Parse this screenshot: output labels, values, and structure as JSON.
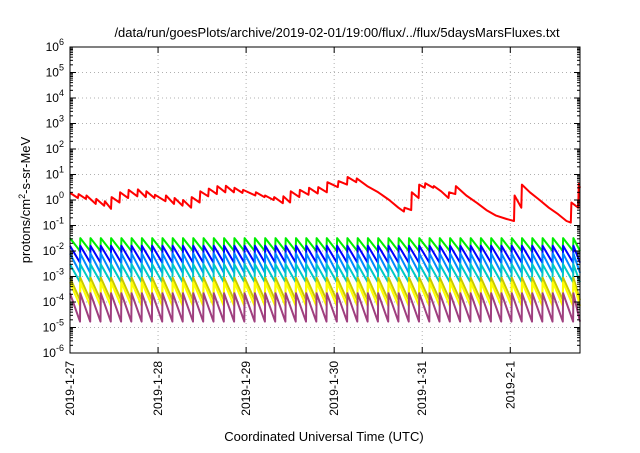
{
  "chart_data": {
    "type": "line",
    "title": "/data/run/goesPlots/archive/2019-02-01/19:00/flux/../flux/5daysMarsFluxes.txt",
    "xlabel": "Coordinated Universal Time (UTC)",
    "ylabel": "protons/cm2-s-sr-MeV",
    "ylabel_parts": {
      "main": "protons/cm",
      "sup": "2",
      "rest": "-s-sr-MeV"
    },
    "yscale": "log",
    "ylim": [
      1e-06,
      1000000.0
    ],
    "y_ticks": [
      {
        "mant": "10",
        "exp": "-6"
      },
      {
        "mant": "10",
        "exp": "-5"
      },
      {
        "mant": "10",
        "exp": "-4"
      },
      {
        "mant": "10",
        "exp": "-3"
      },
      {
        "mant": "10",
        "exp": "-2"
      },
      {
        "mant": "10",
        "exp": "-1"
      },
      {
        "mant": "10",
        "exp": "0"
      },
      {
        "mant": "10",
        "exp": "1"
      },
      {
        "mant": "10",
        "exp": "2"
      },
      {
        "mant": "10",
        "exp": "3"
      },
      {
        "mant": "10",
        "exp": "4"
      },
      {
        "mant": "10",
        "exp": "5"
      },
      {
        "mant": "10",
        "exp": "6"
      }
    ],
    "xlim": [
      "2019-01-27",
      "2019-02-01T19:00"
    ],
    "x_ticks": [
      "2019-1-27",
      "2019-1-28",
      "2019-1-29",
      "2019-1-30",
      "2019-1-31",
      "2019-2-1"
    ],
    "grid": true,
    "legend": "none",
    "series": [
      {
        "color": "#ff0000",
        "kind": "points",
        "points": [
          [
            "2019-01-27T00:00",
            1.9
          ],
          [
            "2019-01-27T02:10",
            1.2
          ],
          [
            "2019-01-27T02:20",
            1.7
          ],
          [
            "2019-01-27T04:20",
            1.1
          ],
          [
            "2019-01-27T04:30",
            1.5
          ],
          [
            "2019-01-27T07:00",
            0.7
          ],
          [
            "2019-01-27T07:10",
            1.1
          ],
          [
            "2019-01-27T09:20",
            0.6
          ],
          [
            "2019-01-27T09:30",
            0.9
          ],
          [
            "2019-01-27T11:10",
            0.45
          ],
          [
            "2019-01-27T11:20",
            1.3
          ],
          [
            "2019-01-27T13:30",
            0.8
          ],
          [
            "2019-01-27T13:40",
            2.0
          ],
          [
            "2019-01-27T15:50",
            1.2
          ],
          [
            "2019-01-27T16:00",
            2.5
          ],
          [
            "2019-01-27T18:20",
            1.4
          ],
          [
            "2019-01-27T18:30",
            2.6
          ],
          [
            "2019-01-27T20:40",
            1.3
          ],
          [
            "2019-01-27T20:50",
            2.2
          ],
          [
            "2019-01-27T23:00",
            1.2
          ],
          [
            "2019-01-27T23:10",
            1.6
          ],
          [
            "2019-01-28T02:00",
            0.9
          ],
          [
            "2019-01-28T02:10",
            1.5
          ],
          [
            "2019-01-28T04:20",
            0.7
          ],
          [
            "2019-01-28T04:30",
            1.2
          ],
          [
            "2019-01-28T06:40",
            0.6
          ],
          [
            "2019-01-28T06:50",
            1.0
          ],
          [
            "2019-01-28T09:00",
            0.5
          ],
          [
            "2019-01-28T09:10",
            1.3
          ],
          [
            "2019-01-28T11:20",
            0.8
          ],
          [
            "2019-01-28T11:30",
            2.2
          ],
          [
            "2019-01-28T13:40",
            1.4
          ],
          [
            "2019-01-28T13:50",
            2.8
          ],
          [
            "2019-01-28T16:00",
            1.7
          ],
          [
            "2019-01-28T16:10",
            3.5
          ],
          [
            "2019-01-28T18:20",
            2.0
          ],
          [
            "2019-01-28T18:30",
            3.6
          ],
          [
            "2019-01-28T20:40",
            2.0
          ],
          [
            "2019-01-28T20:50",
            3.0
          ],
          [
            "2019-01-28T23:00",
            1.9
          ],
          [
            "2019-01-28T23:10",
            2.5
          ],
          [
            "2019-01-29T02:30",
            1.5
          ],
          [
            "2019-01-29T02:40",
            2.0
          ],
          [
            "2019-01-29T05:00",
            1.3
          ],
          [
            "2019-01-29T05:10",
            1.5
          ],
          [
            "2019-01-29T07:30",
            1.0
          ],
          [
            "2019-01-29T07:40",
            1.3
          ],
          [
            "2019-01-29T10:00",
            0.75
          ],
          [
            "2019-01-29T10:10",
            1.4
          ],
          [
            "2019-01-29T12:00",
            0.8
          ],
          [
            "2019-01-29T12:10",
            2.2
          ],
          [
            "2019-01-29T14:30",
            1.3
          ],
          [
            "2019-01-29T14:40",
            2.5
          ],
          [
            "2019-01-29T17:00",
            1.6
          ],
          [
            "2019-01-29T17:10",
            3.0
          ],
          [
            "2019-01-29T19:30",
            1.8
          ],
          [
            "2019-01-29T19:40",
            3.2
          ],
          [
            "2019-01-29T22:00",
            2.0
          ],
          [
            "2019-01-29T22:10",
            5.0
          ],
          [
            "2019-01-30T01:00",
            3.2
          ],
          [
            "2019-01-30T01:10",
            5.5
          ],
          [
            "2019-01-30T03:30",
            4.0
          ],
          [
            "2019-01-30T03:40",
            8.0
          ],
          [
            "2019-01-30T06:00",
            5.0
          ],
          [
            "2019-01-30T06:10",
            7.0
          ],
          [
            "2019-01-30T09:00",
            3.5
          ],
          [
            "2019-01-30T12:00",
            2.0
          ],
          [
            "2019-01-30T15:00",
            1.0
          ],
          [
            "2019-01-30T17:30",
            0.5
          ],
          [
            "2019-01-30T19:00",
            0.35
          ],
          [
            "2019-01-30T19:10",
            0.5
          ],
          [
            "2019-01-30T21:00",
            0.4
          ],
          [
            "2019-01-30T21:10",
            2.0
          ],
          [
            "2019-01-30T23:00",
            1.2
          ],
          [
            "2019-01-30T23:10",
            4.0
          ],
          [
            "2019-01-31T00:40",
            3.0
          ],
          [
            "2019-01-31T00:50",
            4.5
          ],
          [
            "2019-01-31T03:00",
            3.0
          ],
          [
            "2019-01-31T03:10",
            3.5
          ],
          [
            "2019-01-31T05:10",
            2.2
          ],
          [
            "2019-01-31T07:10",
            1.2
          ],
          [
            "2019-01-31T07:20",
            2.0
          ],
          [
            "2019-01-31T09:00",
            1.7
          ],
          [
            "2019-01-31T09:10",
            3.5
          ],
          [
            "2019-01-31T12:00",
            1.5
          ],
          [
            "2019-01-31T15:00",
            0.75
          ],
          [
            "2019-01-31T17:30",
            0.4
          ],
          [
            "2019-01-31T20:00",
            0.25
          ],
          [
            "2019-01-31T23:00",
            0.18
          ],
          [
            "2019-02-01T01:00",
            0.15
          ],
          [
            "2019-02-01T01:10",
            1.5
          ],
          [
            "2019-02-01T03:00",
            0.5
          ],
          [
            "2019-02-01T03:10",
            4.0
          ],
          [
            "2019-02-01T05:20",
            2.0
          ],
          [
            "2019-02-01T08:00",
            1.0
          ],
          [
            "2019-02-01T10:30",
            0.5
          ],
          [
            "2019-02-01T13:00",
            0.28
          ],
          [
            "2019-02-01T15:20",
            0.15
          ],
          [
            "2019-02-01T16:30",
            0.13
          ],
          [
            "2019-02-01T16:40",
            0.8
          ],
          [
            "2019-02-01T18:30",
            0.5
          ],
          [
            "2019-02-01T18:40",
            4.3
          ],
          [
            "2019-02-01T19:00",
            3.0
          ]
        ]
      },
      {
        "color": "#00ee00",
        "kind": "sawtooth",
        "start": "2019-01-27T00:00",
        "end": "2019-02-01T19:00",
        "period_hours": 2.8,
        "high": 0.032,
        "low": 0.01
      },
      {
        "color": "#0000ff",
        "kind": "sawtooth",
        "start": "2019-01-27T00:00",
        "end": "2019-02-01T19:00",
        "period_hours": 2.8,
        "high": 0.016,
        "low": 0.0035
      },
      {
        "color": "#0088ff",
        "kind": "sawtooth",
        "start": "2019-01-27T00:00",
        "end": "2019-02-01T19:00",
        "period_hours": 2.8,
        "high": 0.008,
        "low": 0.0014
      },
      {
        "color": "#00c8c8",
        "kind": "sawtooth",
        "start": "2019-01-27T00:00",
        "end": "2019-02-01T19:00",
        "period_hours": 2.8,
        "high": 0.003,
        "low": 0.0006
      },
      {
        "color": "#c8c800",
        "kind": "sawtooth",
        "start": "2019-01-27T00:00",
        "end": "2019-02-01T19:00",
        "period_hours": 2.8,
        "high": 0.0009,
        "low": 0.00012
      },
      {
        "color": "#ffff00",
        "kind": "sawtooth",
        "start": "2019-01-27T00:00",
        "end": "2019-02-01T19:00",
        "period_hours": 2.8,
        "high": 0.0006,
        "low": 7e-05
      },
      {
        "color": "#9f3f7f",
        "kind": "sawtooth",
        "start": "2019-01-27T00:00",
        "end": "2019-02-01T19:00",
        "period_hours": 2.8,
        "high": 0.00022,
        "low": 1.7e-05
      }
    ]
  }
}
